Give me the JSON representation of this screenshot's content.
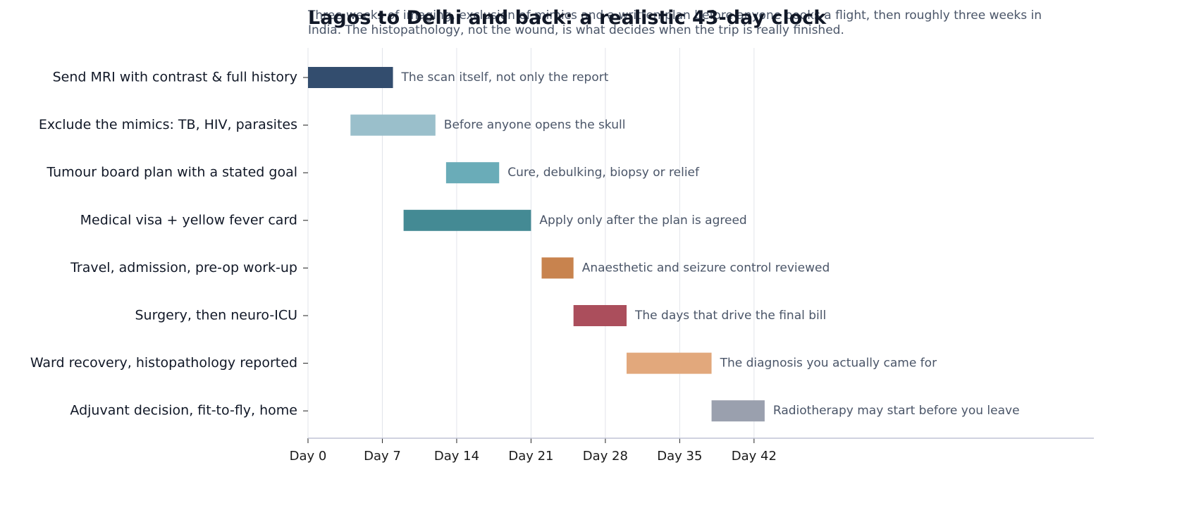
{
  "chart_data": {
    "type": "gantt",
    "title": "Lagos to Delhi and back: a realistic 43-day clock",
    "subtitle": "Three weeks of imaging, exclusion of mimics and a written plan before anyone books a flight, then roughly three weeks in India. The histopathology, not the wound, is what decides when the trip is really finished.",
    "tasks": [
      {
        "name": "Send MRI with contrast & full history",
        "start": 0,
        "end": 8,
        "color": "#334d6e",
        "note": "The scan itself, not only the report"
      },
      {
        "name": "Exclude the mimics: TB, HIV, parasites",
        "start": 4,
        "end": 12,
        "color": "#9abfcb",
        "note": "Before anyone opens the skull"
      },
      {
        "name": "Tumour board plan with a stated goal",
        "start": 13,
        "end": 18,
        "color": "#6aacb8",
        "note": "Cure, debulking, biopsy or relief"
      },
      {
        "name": "Medical visa + yellow fever card",
        "start": 9,
        "end": 21,
        "color": "#448a94",
        "note": "Apply only after the plan is agreed"
      },
      {
        "name": "Travel, admission, pre-op work-up",
        "start": 22,
        "end": 25,
        "color": "#c8834e",
        "note": "Anaesthetic and seizure control reviewed"
      },
      {
        "name": "Surgery, then neuro-ICU",
        "start": 25,
        "end": 30,
        "color": "#ab4e5c",
        "note": "The days that drive the final bill"
      },
      {
        "name": "Ward recovery, histopathology reported",
        "start": 30,
        "end": 38,
        "color": "#e2a87c",
        "note": "The diagnosis you actually came for"
      },
      {
        "name": "Adjuvant decision, fit-to-fly, home",
        "start": 38,
        "end": 43,
        "color": "#9aa0ae",
        "note": "Radiotherapy may start before you leave"
      }
    ],
    "xlim": [
      0,
      74
    ],
    "xticks": [
      {
        "value": 0,
        "label": "Day 0"
      },
      {
        "value": 7,
        "label": "Day 7"
      },
      {
        "value": 14,
        "label": "Day 14"
      },
      {
        "value": 21,
        "label": "Day 21"
      },
      {
        "value": 28,
        "label": "Day 28"
      },
      {
        "value": 35,
        "label": "Day 35"
      },
      {
        "value": 42,
        "label": "Day 42"
      }
    ],
    "grid": true
  }
}
